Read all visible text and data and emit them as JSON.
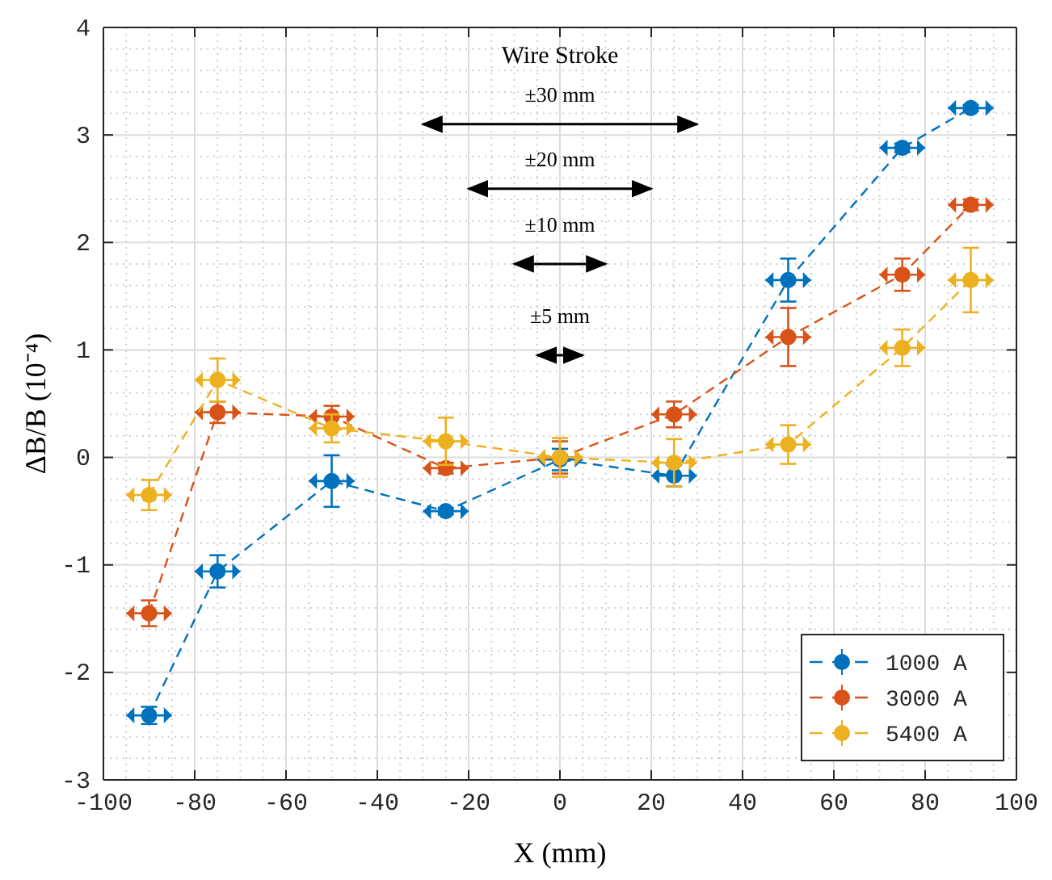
{
  "chart_data": {
    "type": "line",
    "xlabel": "X (mm)",
    "ylabel": "ΔB/B (10⁻⁴)",
    "x": [
      -90,
      -75,
      -50,
      -25,
      0,
      25,
      50,
      75,
      90
    ],
    "xlim": [
      -100,
      100
    ],
    "xticks": [
      -100,
      -80,
      -60,
      -40,
      -20,
      0,
      20,
      40,
      60,
      80,
      100
    ],
    "ylim": [
      -3,
      4
    ],
    "yticks": [
      -3,
      -2,
      -1,
      0,
      1,
      2,
      3,
      4
    ],
    "grid": true,
    "legend": "bottom right",
    "marker": "circle",
    "line_style": "dashed",
    "series": [
      {
        "name": "1000 A",
        "color": "#0072bd",
        "values": [
          -2.4,
          -1.06,
          -0.22,
          -0.5,
          -0.02,
          -0.17,
          1.65,
          2.88,
          3.25
        ],
        "errors": [
          0.08,
          0.15,
          0.24,
          0.03,
          0.1,
          0.1,
          0.2,
          0.04,
          0.03
        ],
        "xerrors": [
          5,
          5,
          5,
          5,
          5,
          5,
          5,
          5,
          5
        ]
      },
      {
        "name": "3000 A",
        "color": "#d95319",
        "values": [
          -1.45,
          0.42,
          0.38,
          -0.1,
          0.0,
          0.4,
          1.12,
          1.7,
          2.35
        ],
        "errors": [
          0.12,
          0.1,
          0.1,
          0.05,
          0.15,
          0.12,
          0.27,
          0.15,
          0.05
        ],
        "xerrors": [
          5,
          5,
          5,
          5,
          5,
          5,
          5,
          5,
          5
        ]
      },
      {
        "name": "5400 A",
        "color": "#edb120",
        "values": [
          -0.35,
          0.72,
          0.27,
          0.15,
          0.0,
          -0.05,
          0.12,
          1.02,
          1.65
        ],
        "errors": [
          0.14,
          0.2,
          0.13,
          0.22,
          0.18,
          0.22,
          0.18,
          0.17,
          0.3
        ],
        "xerrors": [
          5,
          5,
          5,
          5,
          5,
          5,
          5,
          5,
          5
        ]
      },
      {
        "type": "line",
        "color": "#000000",
        "x": [
          -30,
          30
        ],
        "values": [
          3.1,
          3.1
        ],
        "marker": "none",
        "line_style": "solid"
      },
      {
        "type": "line",
        "color": "#000000",
        "x": [
          -20,
          20
        ],
        "values": [
          2.5,
          2.5
        ],
        "marker": "none",
        "line_style": "solid"
      },
      {
        "type": "line",
        "color": "#000000",
        "x": [
          -10,
          10
        ],
        "values": [
          1.8,
          1.8
        ],
        "marker": "none",
        "line_style": "solid"
      },
      {
        "type": "line",
        "color": "#000000",
        "x": [
          -5,
          5
        ],
        "values": [
          0.95,
          0.95
        ],
        "marker": "none",
        "line_style": "solid"
      }
    ],
    "annotations": [
      "Wire Stroke",
      "±30 mm",
      "±20 mm",
      "±10 mm",
      "±5 mm"
    ]
  }
}
